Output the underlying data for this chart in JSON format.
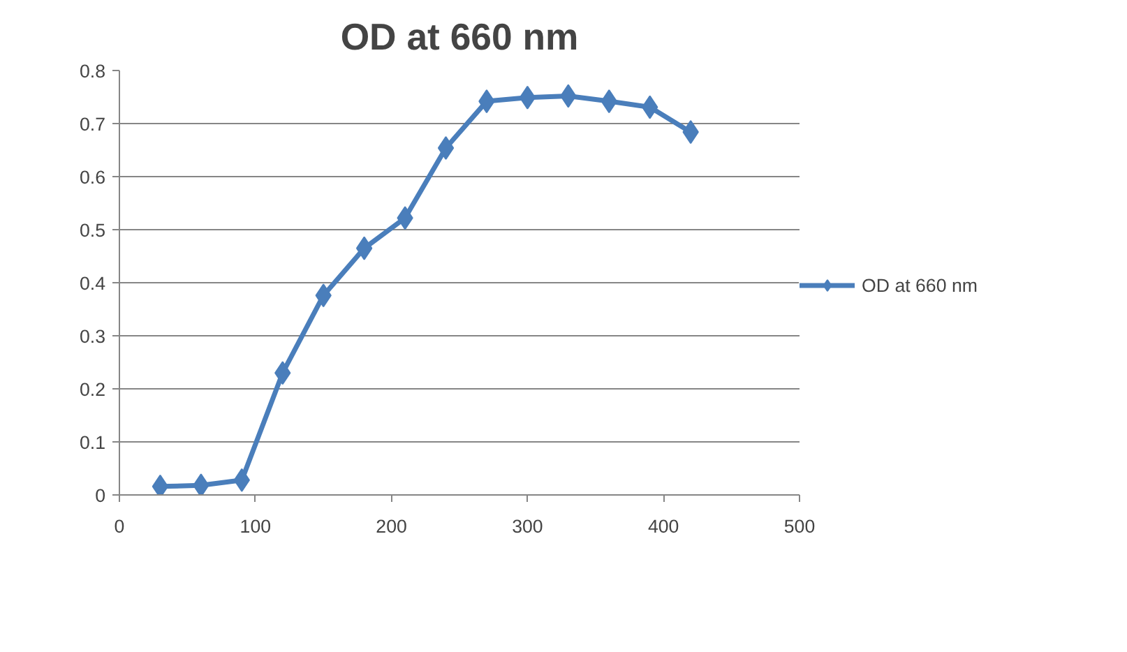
{
  "chart_data": {
    "type": "line",
    "title": "OD at 660 nm",
    "x": [
      30,
      60,
      90,
      120,
      150,
      180,
      210,
      240,
      270,
      300,
      330,
      360,
      390,
      420
    ],
    "series": [
      {
        "name": "OD at 660 nm",
        "color": "#4a7ebb",
        "values": [
          0.016,
          0.018,
          0.028,
          0.23,
          0.376,
          0.465,
          0.522,
          0.654,
          0.742,
          0.749,
          0.752,
          0.742,
          0.731,
          0.684
        ]
      }
    ],
    "xlim": [
      0,
      500
    ],
    "xticks": [
      0,
      100,
      200,
      300,
      400,
      500
    ],
    "ylim": [
      0,
      0.8
    ],
    "yticks": [
      0,
      0.1,
      0.2,
      0.3,
      0.4,
      0.5,
      0.6,
      0.7,
      0.8
    ],
    "grid": "y",
    "legend": "right",
    "marker": "diamond",
    "line_style": "solid"
  }
}
